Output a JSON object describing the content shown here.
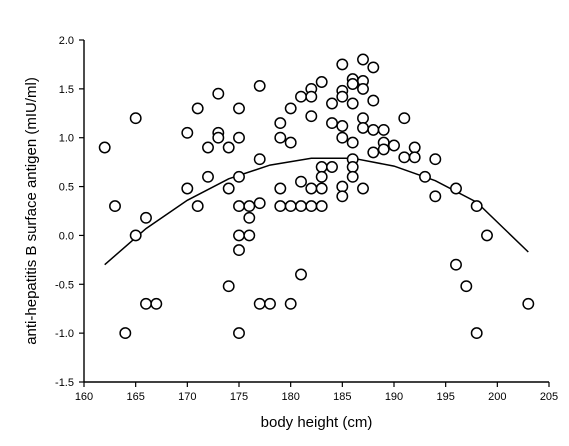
{
  "chart_data": {
    "type": "scatter",
    "xlabel": "body height (cm)",
    "ylabel": "anti-hepatitis B surface antigen (mIU/ml)",
    "xlim": [
      160,
      205
    ],
    "ylim": [
      -1.5,
      2.0
    ],
    "xticks": [
      160,
      165,
      170,
      175,
      180,
      185,
      190,
      195,
      200,
      205
    ],
    "yticks": [
      -1.5,
      -1.0,
      -0.5,
      0.0,
      0.5,
      1.0,
      1.5,
      2.0
    ],
    "xtick_labels": [
      "160",
      "165",
      "170",
      "175",
      "180",
      "185",
      "190",
      "195",
      "200",
      "205"
    ],
    "ytick_labels": [
      "-1.5",
      "-1.0",
      "-0.5",
      "0.0",
      "0.5",
      "1.0",
      "1.5",
      "2.0"
    ],
    "grid": false,
    "series": [
      {
        "marker": "open-circle",
        "points": [
          [
            162,
            0.9
          ],
          [
            163,
            0.3
          ],
          [
            164,
            -1.0
          ],
          [
            165,
            1.2
          ],
          [
            165,
            0.0
          ],
          [
            166,
            0.18
          ],
          [
            166,
            -0.7
          ],
          [
            167,
            -0.7
          ],
          [
            170,
            1.05
          ],
          [
            170,
            0.48
          ],
          [
            171,
            1.3
          ],
          [
            171,
            0.3
          ],
          [
            172,
            0.9
          ],
          [
            172,
            0.6
          ],
          [
            173,
            1.45
          ],
          [
            173,
            1.05
          ],
          [
            173,
            1.0
          ],
          [
            174,
            0.9
          ],
          [
            174,
            0.48
          ],
          [
            174,
            -0.52
          ],
          [
            175,
            1.3
          ],
          [
            175,
            1.0
          ],
          [
            175,
            0.6
          ],
          [
            175,
            0.3
          ],
          [
            175,
            0.0
          ],
          [
            175,
            -0.15
          ],
          [
            175,
            -1.0
          ],
          [
            176,
            0.3
          ],
          [
            176,
            0.18
          ],
          [
            176,
            0.0
          ],
          [
            177,
            1.53
          ],
          [
            177,
            0.78
          ],
          [
            177,
            0.33
          ],
          [
            177,
            -0.7
          ],
          [
            178,
            -0.7
          ],
          [
            179,
            1.15
          ],
          [
            179,
            1.0
          ],
          [
            179,
            0.48
          ],
          [
            179,
            0.3
          ],
          [
            180,
            1.3
          ],
          [
            180,
            0.95
          ],
          [
            180,
            0.3
          ],
          [
            180,
            -0.7
          ],
          [
            181,
            1.42
          ],
          [
            181,
            0.55
          ],
          [
            181,
            0.3
          ],
          [
            181,
            -0.4
          ],
          [
            182,
            1.5
          ],
          [
            182,
            1.42
          ],
          [
            182,
            1.22
          ],
          [
            182,
            0.48
          ],
          [
            182,
            0.3
          ],
          [
            183,
            1.57
          ],
          [
            183,
            0.7
          ],
          [
            183,
            0.6
          ],
          [
            183,
            0.48
          ],
          [
            183,
            0.3
          ],
          [
            184,
            1.35
          ],
          [
            184,
            1.15
          ],
          [
            184,
            0.7
          ],
          [
            185,
            1.75
          ],
          [
            185,
            1.48
          ],
          [
            185,
            1.42
          ],
          [
            185,
            1.12
          ],
          [
            185,
            1.0
          ],
          [
            185,
            0.5
          ],
          [
            185,
            0.4
          ],
          [
            186,
            1.6
          ],
          [
            186,
            1.55
          ],
          [
            186,
            1.35
          ],
          [
            186,
            0.95
          ],
          [
            186,
            0.78
          ],
          [
            186,
            0.7
          ],
          [
            186,
            0.6
          ],
          [
            187,
            1.8
          ],
          [
            187,
            1.58
          ],
          [
            187,
            1.5
          ],
          [
            187,
            1.2
          ],
          [
            187,
            1.1
          ],
          [
            187,
            0.48
          ],
          [
            188,
            1.72
          ],
          [
            188,
            1.38
          ],
          [
            188,
            1.08
          ],
          [
            188,
            0.85
          ],
          [
            189,
            1.08
          ],
          [
            189,
            0.95
          ],
          [
            189,
            0.88
          ],
          [
            190,
            0.92
          ],
          [
            191,
            1.2
          ],
          [
            191,
            0.8
          ],
          [
            192,
            0.9
          ],
          [
            192,
            0.8
          ],
          [
            193,
            0.6
          ],
          [
            194,
            0.78
          ],
          [
            194,
            0.4
          ],
          [
            196,
            0.48
          ],
          [
            196,
            -0.3
          ],
          [
            197,
            -0.52
          ],
          [
            198,
            0.3
          ],
          [
            198,
            -1.0
          ],
          [
            199,
            0.0
          ],
          [
            203,
            -0.7
          ]
        ]
      },
      {
        "type": "quadratic-fit",
        "x": [
          162,
          166,
          170,
          174,
          178,
          182,
          186,
          190,
          194,
          198,
          203
        ],
        "y": [
          -0.3,
          0.07,
          0.36,
          0.58,
          0.72,
          0.79,
          0.79,
          0.71,
          0.56,
          0.34,
          -0.17
        ]
      }
    ]
  }
}
